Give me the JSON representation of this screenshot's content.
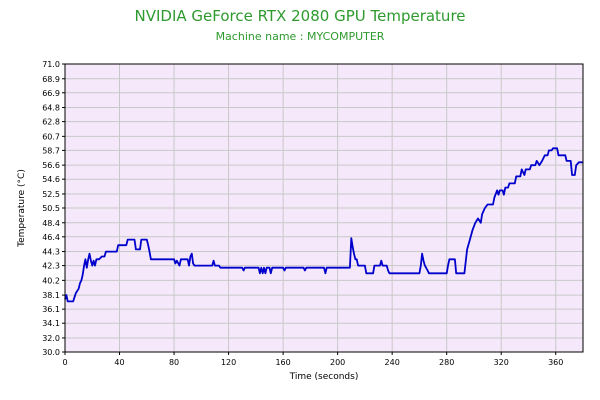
{
  "chart_data": {
    "type": "line",
    "title": "NVIDIA GeForce RTX 2080 GPU Temperature",
    "subtitle": "Machine name : MYCOMPUTER",
    "xlabel": "Time (seconds)",
    "ylabel": "Temperature (°C)",
    "xlim": [
      0,
      380
    ],
    "ylim": [
      30.0,
      71.0
    ],
    "xticks": [
      0,
      40,
      80,
      120,
      160,
      200,
      240,
      280,
      320,
      360
    ],
    "yticks": [
      "30.0",
      "32.0",
      "34.1",
      "36.1",
      "38.1",
      "40.2",
      "42.3",
      "44.3",
      "46.4",
      "48.4",
      "50.5",
      "52.5",
      "54.6",
      "56.6",
      "58.7",
      "60.7",
      "62.8",
      "64.8",
      "66.9",
      "68.9",
      "71.0"
    ],
    "grid": true,
    "colors": {
      "plot_background": "#f5e8fa",
      "grid": "#c8c8c8",
      "line": "#0000cc",
      "title": "#2e9a2e"
    },
    "series": [
      {
        "values": [
          [
            0,
            37.5
          ],
          [
            1,
            38.1
          ],
          [
            2,
            37.2
          ],
          [
            6,
            37.2
          ],
          [
            7,
            37.8
          ],
          [
            8,
            38.4
          ],
          [
            10,
            39.0
          ],
          [
            11,
            39.8
          ],
          [
            12,
            40.2
          ],
          [
            13,
            41.0
          ],
          [
            14,
            42.3
          ],
          [
            15,
            43.2
          ],
          [
            16,
            42.0
          ],
          [
            17,
            43.2
          ],
          [
            18,
            44.0
          ],
          [
            19,
            43.0
          ],
          [
            20,
            42.3
          ],
          [
            21,
            43.0
          ],
          [
            22,
            42.3
          ],
          [
            23,
            43.2
          ],
          [
            25,
            43.2
          ],
          [
            27,
            43.6
          ],
          [
            29,
            43.6
          ],
          [
            30,
            44.3
          ],
          [
            38,
            44.3
          ],
          [
            39,
            45.2
          ],
          [
            45,
            45.2
          ],
          [
            46,
            46.0
          ],
          [
            51,
            46.0
          ],
          [
            52,
            44.6
          ],
          [
            55,
            44.6
          ],
          [
            56,
            46.0
          ],
          [
            60,
            46.0
          ],
          [
            61,
            45.2
          ],
          [
            62,
            44.3
          ],
          [
            63,
            43.2
          ],
          [
            80,
            43.2
          ],
          [
            81,
            42.6
          ],
          [
            82,
            43.0
          ],
          [
            84,
            42.3
          ],
          [
            85,
            43.2
          ],
          [
            90,
            43.2
          ],
          [
            91,
            42.3
          ],
          [
            92,
            43.6
          ],
          [
            93,
            44.0
          ],
          [
            94,
            42.6
          ],
          [
            95,
            42.3
          ],
          [
            108,
            42.3
          ],
          [
            109,
            43.0
          ],
          [
            110,
            42.3
          ],
          [
            113,
            42.3
          ],
          [
            114,
            42.0
          ],
          [
            130,
            42.0
          ],
          [
            131,
            41.6
          ],
          [
            132,
            42.0
          ],
          [
            142,
            42.0
          ],
          [
            143,
            41.2
          ],
          [
            144,
            42.0
          ],
          [
            145,
            41.2
          ],
          [
            146,
            42.0
          ],
          [
            147,
            41.2
          ],
          [
            148,
            42.0
          ],
          [
            150,
            42.0
          ],
          [
            151,
            41.2
          ],
          [
            152,
            42.0
          ],
          [
            160,
            42.0
          ],
          [
            161,
            41.6
          ],
          [
            162,
            42.0
          ],
          [
            175,
            42.0
          ],
          [
            176,
            41.6
          ],
          [
            177,
            42.0
          ],
          [
            190,
            42.0
          ],
          [
            191,
            41.2
          ],
          [
            192,
            42.0
          ],
          [
            200,
            42.0
          ],
          [
            209,
            42.0
          ],
          [
            210,
            46.2
          ],
          [
            211,
            45.0
          ],
          [
            212,
            44.0
          ],
          [
            213,
            43.2
          ],
          [
            214,
            43.2
          ],
          [
            215,
            42.3
          ],
          [
            220,
            42.3
          ],
          [
            221,
            41.2
          ],
          [
            226,
            41.2
          ],
          [
            227,
            42.3
          ],
          [
            231,
            42.3
          ],
          [
            232,
            43.0
          ],
          [
            233,
            42.3
          ],
          [
            236,
            42.3
          ],
          [
            237,
            41.6
          ],
          [
            238,
            41.2
          ],
          [
            260,
            41.2
          ],
          [
            261,
            42.3
          ],
          [
            262,
            44.0
          ],
          [
            263,
            43.0
          ],
          [
            264,
            42.3
          ],
          [
            266,
            41.6
          ],
          [
            267,
            41.2
          ],
          [
            280,
            41.2
          ],
          [
            281,
            42.3
          ],
          [
            282,
            43.2
          ],
          [
            286,
            43.2
          ],
          [
            287,
            41.2
          ],
          [
            293,
            41.2
          ],
          [
            295,
            44.6
          ],
          [
            297,
            46.0
          ],
          [
            299,
            47.4
          ],
          [
            301,
            48.4
          ],
          [
            303,
            49.0
          ],
          [
            305,
            48.4
          ],
          [
            306,
            49.6
          ],
          [
            308,
            50.5
          ],
          [
            310,
            51.0
          ],
          [
            314,
            51.0
          ],
          [
            315,
            52.0
          ],
          [
            317,
            53.0
          ],
          [
            318,
            52.4
          ],
          [
            319,
            53.0
          ],
          [
            321,
            53.0
          ],
          [
            322,
            52.4
          ],
          [
            323,
            53.4
          ],
          [
            325,
            53.4
          ],
          [
            326,
            54.0
          ],
          [
            330,
            54.0
          ],
          [
            331,
            55.0
          ],
          [
            334,
            55.0
          ],
          [
            335,
            56.0
          ],
          [
            337,
            55.2
          ],
          [
            338,
            56.0
          ],
          [
            341,
            56.0
          ],
          [
            342,
            56.6
          ],
          [
            345,
            56.6
          ],
          [
            346,
            57.2
          ],
          [
            348,
            56.6
          ],
          [
            350,
            57.2
          ],
          [
            352,
            58.0
          ],
          [
            354,
            58.0
          ],
          [
            355,
            58.7
          ],
          [
            357,
            58.7
          ],
          [
            358,
            59.0
          ],
          [
            361,
            59.0
          ],
          [
            362,
            58.0
          ],
          [
            367,
            58.0
          ],
          [
            368,
            57.2
          ],
          [
            371,
            57.2
          ],
          [
            372,
            55.2
          ],
          [
            374,
            55.2
          ],
          [
            375,
            56.6
          ],
          [
            377,
            57.0
          ],
          [
            380,
            57.0
          ]
        ]
      }
    ]
  }
}
